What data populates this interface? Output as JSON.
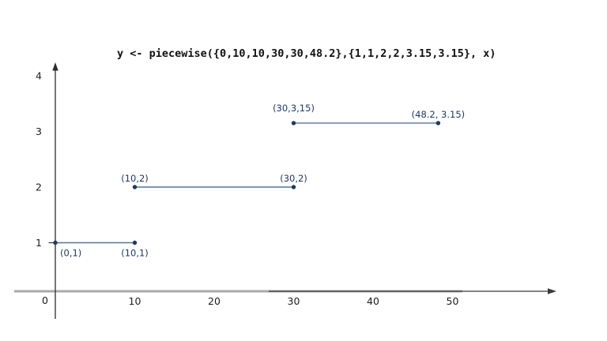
{
  "chart_data": {
    "type": "line",
    "title": "y <- piecewise({0,10,10,30,30,48.2},{1,1,2,2,3.15,3.15}, x)",
    "xlabel": "",
    "ylabel": "",
    "grid": false,
    "legend": "none",
    "xlim": [
      0,
      63
    ],
    "ylim": [
      0,
      4.2
    ],
    "x_ticks": [
      0,
      10,
      20,
      30,
      40,
      50
    ],
    "y_ticks": [
      1,
      2,
      3,
      4
    ],
    "segments": [
      {
        "x1": 0,
        "y1": 1,
        "x2": 10,
        "y2": 1
      },
      {
        "x1": 10,
        "y1": 2,
        "x2": 30,
        "y2": 2
      },
      {
        "x1": 30,
        "y1": 3.15,
        "x2": 48.2,
        "y2": 3.15
      }
    ],
    "points": [
      {
        "x": 0,
        "y": 1,
        "label": "(0,1)",
        "label_pos": "below"
      },
      {
        "x": 10,
        "y": 1,
        "label": "(10,1)",
        "label_pos": "below"
      },
      {
        "x": 10,
        "y": 2,
        "label": "(10,2)",
        "label_pos": "above"
      },
      {
        "x": 30,
        "y": 2,
        "label": "(30,2)",
        "label_pos": "above"
      },
      {
        "x": 30,
        "y": 3.15,
        "label": "(30,3,15)",
        "label_pos": "above-high"
      },
      {
        "x": 48.2,
        "y": 3.15,
        "label": "(48.2, 3.15)",
        "label_pos": "above"
      }
    ],
    "colors": {
      "point": "#1f3864",
      "segment": "#51749e",
      "point_label": "#1f3864",
      "axis_gray": "#a9a9a9",
      "axis_dark": "#3a3a3a",
      "tick_text": "#1c1c1c"
    }
  }
}
